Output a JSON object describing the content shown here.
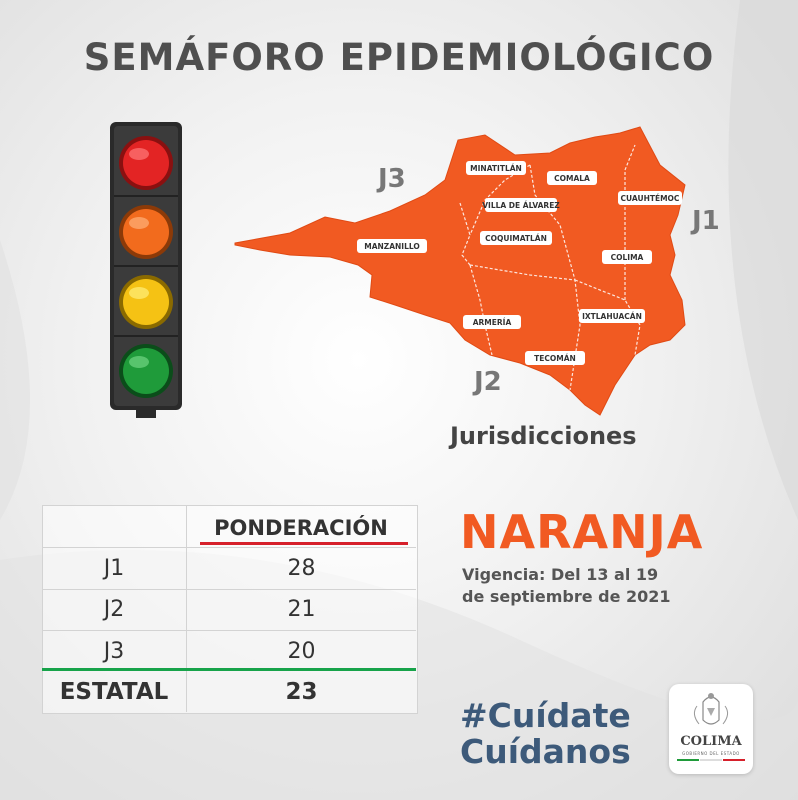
{
  "title": "SEMÁFORO EPIDEMIOLÓGICO",
  "traffic_light": {
    "lights": [
      "red-light",
      "orange-light",
      "yellow-light",
      "green-light"
    ],
    "active": "orange-light"
  },
  "map": {
    "fill_color": "#f15a22",
    "municipalities": [
      "MINATITLÁN",
      "COMALA",
      "CUAUHTÉMOC",
      "VILLA DE ÁLVAREZ",
      "MANZANILLO",
      "COQUIMATLÁN",
      "COLIMA",
      "ARMERÍA",
      "IXTLAHUACÁN",
      "TECOMÁN"
    ],
    "jurisdictions": [
      "J1",
      "J2",
      "J3"
    ],
    "caption": "Jurisdicciones"
  },
  "table": {
    "header": "PONDERACIÓN",
    "rows": [
      {
        "label": "J1",
        "value": "28"
      },
      {
        "label": "J2",
        "value": "21"
      },
      {
        "label": "J3",
        "value": "20"
      }
    ],
    "total": {
      "label": "ESTATAL",
      "value": "23"
    }
  },
  "status": {
    "color_name": "NARANJA",
    "color": "#f15a22",
    "validity_line1": "Vigencia: Del 13 al 19",
    "validity_line2": "de septiembre de 2021"
  },
  "hashtags": [
    "#Cuídate",
    "Cuídanos"
  ],
  "logo": {
    "name": "COLIMA",
    "subtitle": "GOBIERNO DEL ESTADO"
  }
}
